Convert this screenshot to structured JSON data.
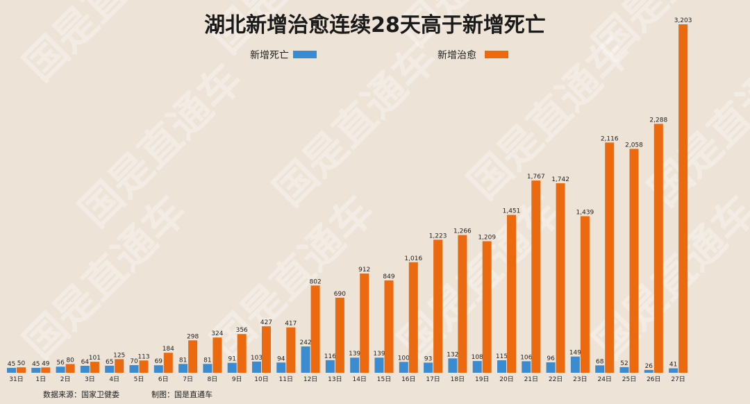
{
  "colors": {
    "background": "#ede3d6",
    "deaths": "#3b8bd1",
    "recoveries": "#eb6a10"
  },
  "watermark": "国是直通车",
  "footer": {
    "source": "数据来源：国家卫健委",
    "credit": "制图：国是直通车"
  },
  "chart_data": {
    "type": "bar",
    "title": "湖北新增治愈连续28天高于新增死亡",
    "legend_position": "top",
    "grid": false,
    "ylim": [
      0,
      3300
    ],
    "categories": [
      "31日",
      "1日",
      "2日",
      "3日",
      "4日",
      "5日",
      "6日",
      "7日",
      "8日",
      "9日",
      "10日",
      "11日",
      "12日",
      "13日",
      "14日",
      "15日",
      "16日",
      "17日",
      "18日",
      "19日",
      "20日",
      "21日",
      "22日",
      "23日",
      "24日",
      "25日",
      "26日",
      "27日"
    ],
    "series": [
      {
        "name": "新增死亡",
        "color": "#3b8bd1",
        "values": [
          45,
          45,
          56,
          64,
          65,
          70,
          69,
          81,
          81,
          91,
          103,
          94,
          242,
          116,
          139,
          139,
          100,
          93,
          132,
          108,
          115,
          106,
          96,
          149,
          68,
          52,
          26,
          41
        ]
      },
      {
        "name": "新增治愈",
        "color": "#eb6a10",
        "values": [
          50,
          49,
          80,
          101,
          125,
          113,
          184,
          298,
          324,
          356,
          427,
          417,
          802,
          690,
          912,
          849,
          1016,
          1223,
          1266,
          1209,
          1451,
          1767,
          1742,
          1439,
          2116,
          2058,
          2288,
          3203
        ]
      }
    ]
  }
}
